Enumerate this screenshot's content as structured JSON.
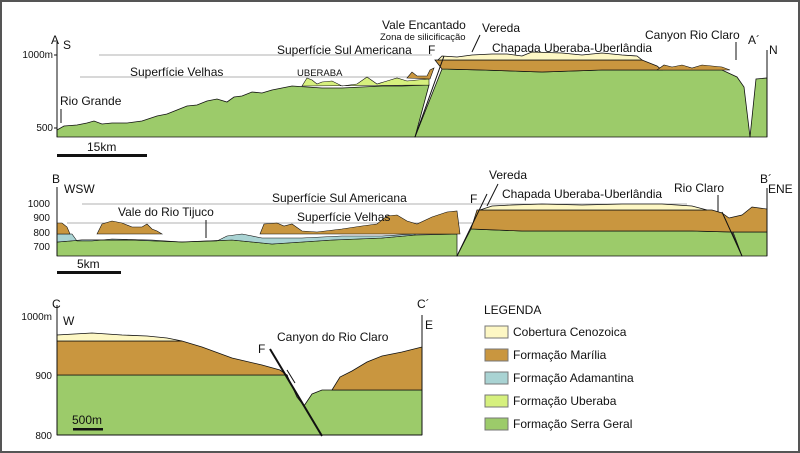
{
  "colors": {
    "cobertura_cenozoica": "#fdf7c4",
    "formacao_marilia": "#c9963f",
    "formacao_adamantina": "#a9d3d3",
    "formacao_uberaba": "#d6f07e",
    "formacao_serra_geral": "#9ccb6a"
  },
  "section_a": {
    "start": "A",
    "end": "A´",
    "start_dir": "S",
    "end_dir": "N",
    "y_ticks": [
      "1000m",
      "500"
    ],
    "labels": {
      "rio_grande": "Rio Grande",
      "superficie_velhas": "Superfície Velhas",
      "uberaba": "UBERABA",
      "superficie_sul_americana": "Superfície Sul Americana",
      "vale_encantado": "Vale Encantado",
      "zona_silicificacao": "Zona de silicificação",
      "vereda": "Vereda",
      "chapada": "Chapada Uberaba-Uberlândia",
      "canyon": "Canyon Rio Claro",
      "fault": "F"
    },
    "scale": "15km"
  },
  "section_b": {
    "start": "B",
    "end": "B´",
    "start_dir": "WSW",
    "end_dir": "ENE",
    "y_ticks": [
      "1000",
      "900",
      "800",
      "700"
    ],
    "labels": {
      "vale_tijuco": "Vale do Rio Tijuco",
      "superficie_sul_americana": "Superfície Sul Americana",
      "superficie_velhas": "Superfície Velhas",
      "vereda": "Vereda",
      "chapada": "Chapada Uberaba-Uberlândia",
      "rio_claro": "Rio Claro",
      "fault": "F"
    },
    "scale": "5km"
  },
  "section_c": {
    "start": "C",
    "end": "C´",
    "start_dir": "W",
    "end_dir": "E",
    "y_ticks": [
      "1000m",
      "900",
      "800"
    ],
    "labels": {
      "canyon": "Canyon do Rio Claro",
      "fault": "F"
    },
    "scale": "500m"
  },
  "legend": {
    "title": "LEGENDA",
    "items": [
      {
        "label": "Cobertura Cenozoica",
        "color": "#fdf7c4"
      },
      {
        "label": "Formação Marília",
        "color": "#c9963f"
      },
      {
        "label": "Formação Adamantina",
        "color": "#a9d3d3"
      },
      {
        "label": "Formação Uberaba",
        "color": "#d6f07e"
      },
      {
        "label": "Formação Serra Geral",
        "color": "#9ccb6a"
      }
    ]
  }
}
